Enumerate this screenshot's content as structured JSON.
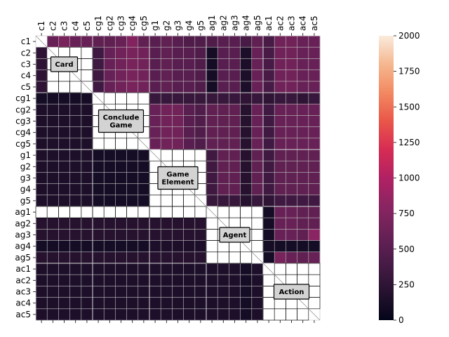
{
  "chart_data": {
    "type": "heatmap",
    "row_labels": [
      "c1",
      "c2",
      "c3",
      "c4",
      "c5",
      "cg1",
      "cg2",
      "cg3",
      "cg4",
      "cg5",
      "g1",
      "g2",
      "g3",
      "g4",
      "g5",
      "ag1",
      "ag2",
      "ag3",
      "ag4",
      "ag5",
      "ac1",
      "ac2",
      "ac3",
      "ac4",
      "ac5"
    ],
    "col_labels": [
      "c1",
      "c2",
      "c3",
      "c4",
      "c5",
      "cg1",
      "cg2",
      "cg3",
      "cg4",
      "cg5",
      "g1",
      "g2",
      "g3",
      "g4",
      "g5",
      "ag1",
      "ag2",
      "ag3",
      "ag4",
      "ag5",
      "ac1",
      "ac2",
      "ac3",
      "ac4",
      "ac5"
    ],
    "groups": [
      {
        "label_lines": [
          "Card"
        ],
        "start": 0,
        "end": 4
      },
      {
        "label_lines": [
          "Conclude",
          "Game"
        ],
        "start": 5,
        "end": 9
      },
      {
        "label_lines": [
          "Game",
          "Element"
        ],
        "start": 10,
        "end": 14
      },
      {
        "label_lines": [
          "Agent"
        ],
        "start": 15,
        "end": 19
      },
      {
        "label_lines": [
          "Action"
        ],
        "start": 20,
        "end": 24
      }
    ],
    "colorbar": {
      "min": 0,
      "max": 2000,
      "ticks": [
        0,
        250,
        500,
        750,
        1000,
        1250,
        1500,
        1750,
        2000
      ]
    },
    "values": [
      [
        null,
        600,
        700,
        600,
        600,
        550,
        550,
        600,
        750,
        550,
        500,
        550,
        500,
        450,
        450,
        450,
        500,
        500,
        400,
        550,
        400,
        650,
        650,
        600,
        600
      ],
      [
        250,
        null,
        null,
        null,
        null,
        350,
        600,
        650,
        700,
        650,
        500,
        550,
        500,
        500,
        450,
        100,
        500,
        500,
        150,
        600,
        400,
        650,
        650,
        600,
        600
      ],
      [
        250,
        null,
        null,
        null,
        null,
        350,
        600,
        650,
        700,
        650,
        500,
        550,
        500,
        500,
        450,
        100,
        500,
        500,
        150,
        600,
        400,
        650,
        650,
        600,
        600
      ],
      [
        250,
        null,
        null,
        null,
        null,
        350,
        600,
        650,
        700,
        650,
        500,
        550,
        500,
        500,
        450,
        100,
        500,
        500,
        150,
        600,
        400,
        650,
        650,
        600,
        600
      ],
      [
        250,
        null,
        null,
        null,
        null,
        350,
        600,
        650,
        700,
        650,
        500,
        550,
        500,
        500,
        450,
        100,
        500,
        500,
        150,
        600,
        400,
        650,
        650,
        600,
        600
      ],
      [
        100,
        100,
        100,
        100,
        100,
        null,
        null,
        null,
        null,
        null,
        300,
        300,
        300,
        300,
        300,
        300,
        300,
        300,
        250,
        300,
        250,
        300,
        300,
        250,
        300
      ],
      [
        150,
        150,
        150,
        150,
        150,
        null,
        null,
        null,
        null,
        null,
        600,
        650,
        650,
        500,
        450,
        550,
        550,
        550,
        200,
        600,
        350,
        600,
        600,
        600,
        600
      ],
      [
        150,
        150,
        150,
        150,
        150,
        null,
        null,
        null,
        null,
        null,
        600,
        650,
        650,
        500,
        450,
        550,
        550,
        550,
        200,
        600,
        350,
        600,
        600,
        600,
        600
      ],
      [
        150,
        150,
        150,
        150,
        150,
        null,
        null,
        null,
        null,
        null,
        600,
        650,
        650,
        500,
        450,
        550,
        550,
        550,
        200,
        600,
        350,
        600,
        600,
        600,
        600
      ],
      [
        150,
        150,
        150,
        150,
        150,
        null,
        null,
        null,
        null,
        null,
        600,
        650,
        650,
        500,
        450,
        550,
        550,
        550,
        200,
        600,
        350,
        600,
        600,
        600,
        600
      ],
      [
        150,
        150,
        150,
        150,
        150,
        100,
        100,
        100,
        100,
        100,
        null,
        null,
        null,
        null,
        null,
        350,
        550,
        550,
        200,
        550,
        350,
        550,
        550,
        550,
        550
      ],
      [
        150,
        150,
        150,
        150,
        150,
        100,
        100,
        100,
        100,
        100,
        null,
        null,
        null,
        null,
        null,
        350,
        550,
        550,
        200,
        550,
        350,
        550,
        550,
        550,
        550
      ],
      [
        150,
        150,
        150,
        150,
        150,
        100,
        100,
        100,
        100,
        100,
        null,
        null,
        null,
        null,
        null,
        350,
        550,
        550,
        200,
        550,
        350,
        550,
        550,
        550,
        550
      ],
      [
        150,
        150,
        150,
        150,
        150,
        100,
        100,
        100,
        100,
        100,
        null,
        null,
        null,
        null,
        null,
        350,
        550,
        550,
        200,
        550,
        350,
        550,
        550,
        550,
        550
      ],
      [
        150,
        150,
        150,
        150,
        150,
        100,
        100,
        100,
        100,
        100,
        null,
        null,
        null,
        null,
        null,
        300,
        300,
        300,
        200,
        300,
        250,
        350,
        350,
        350,
        350
      ],
      [
        null,
        null,
        null,
        null,
        null,
        null,
        null,
        null,
        null,
        null,
        null,
        null,
        null,
        null,
        null,
        null,
        null,
        null,
        null,
        null,
        100,
        600,
        600,
        550,
        550
      ],
      [
        200,
        200,
        200,
        200,
        200,
        200,
        200,
        200,
        200,
        200,
        200,
        200,
        200,
        200,
        200,
        null,
        null,
        null,
        null,
        null,
        100,
        600,
        600,
        550,
        550
      ],
      [
        200,
        200,
        200,
        200,
        200,
        200,
        200,
        200,
        200,
        200,
        200,
        200,
        200,
        200,
        200,
        null,
        null,
        null,
        null,
        null,
        100,
        600,
        600,
        550,
        800
      ],
      [
        100,
        100,
        100,
        100,
        100,
        100,
        100,
        100,
        100,
        100,
        150,
        150,
        150,
        150,
        150,
        null,
        null,
        null,
        null,
        null,
        100,
        100,
        100,
        100,
        100
      ],
      [
        200,
        200,
        200,
        200,
        200,
        200,
        200,
        200,
        200,
        200,
        200,
        200,
        200,
        200,
        200,
        null,
        null,
        null,
        null,
        null,
        100,
        700,
        600,
        550,
        600
      ],
      [
        150,
        150,
        150,
        150,
        150,
        150,
        150,
        150,
        150,
        150,
        150,
        150,
        150,
        150,
        150,
        150,
        150,
        150,
        100,
        150,
        null,
        null,
        null,
        null,
        null
      ],
      [
        150,
        150,
        150,
        150,
        150,
        150,
        150,
        150,
        150,
        150,
        150,
        150,
        150,
        150,
        150,
        150,
        150,
        150,
        100,
        150,
        null,
        null,
        null,
        null,
        null
      ],
      [
        150,
        150,
        150,
        150,
        150,
        150,
        150,
        150,
        150,
        150,
        150,
        150,
        150,
        150,
        150,
        150,
        150,
        150,
        100,
        150,
        null,
        null,
        null,
        null,
        null
      ],
      [
        150,
        150,
        150,
        150,
        150,
        150,
        150,
        150,
        150,
        150,
        150,
        150,
        150,
        150,
        150,
        150,
        150,
        150,
        100,
        150,
        null,
        null,
        null,
        null,
        null
      ],
      [
        150,
        150,
        150,
        150,
        150,
        150,
        150,
        150,
        150,
        150,
        150,
        150,
        150,
        150,
        150,
        150,
        150,
        150,
        100,
        150,
        null,
        null,
        null,
        null,
        null
      ]
    ]
  },
  "colors": {
    "grid_light": "#bfbfbf",
    "grid_dark": "#000000",
    "group_box_fill": "#d3d3d3"
  }
}
